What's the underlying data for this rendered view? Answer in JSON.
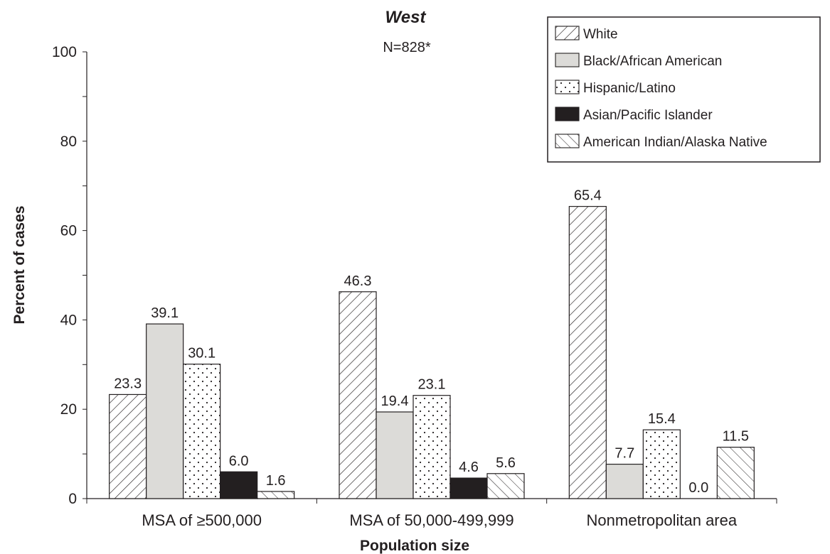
{
  "chart_data": {
    "type": "bar",
    "title": "West",
    "subtitle": "N=828*",
    "xlabel": "Population size",
    "ylabel": "Percent of cases",
    "ylim": [
      0,
      100
    ],
    "yticks": [
      0,
      20,
      40,
      60,
      80,
      100
    ],
    "grid": false,
    "legend_position": "top-right",
    "categories": [
      "MSA of ≥500,000",
      "MSA of 50,000-499,999",
      "Nonmetropolitan area"
    ],
    "series": [
      {
        "name": "White",
        "pattern": "diagonal-back",
        "values": [
          23.3,
          46.3,
          65.4
        ],
        "labels": [
          "23.3",
          "46.3",
          "65.4"
        ]
      },
      {
        "name": "Black/African American",
        "pattern": "solid-light-gray",
        "color": "#dcdbd8",
        "values": [
          39.1,
          19.4,
          7.7
        ],
        "labels": [
          "39.1",
          "19.4",
          "7.7"
        ]
      },
      {
        "name": "Hispanic/Latino",
        "pattern": "dots",
        "values": [
          30.1,
          23.1,
          15.4
        ],
        "labels": [
          "30.1",
          "23.1",
          "15.4"
        ]
      },
      {
        "name": "Asian/Pacific Islander",
        "pattern": "solid-black",
        "color": "#231f20",
        "values": [
          6.0,
          4.6,
          0.0
        ],
        "labels": [
          "6.0",
          "4.6",
          "0.0"
        ]
      },
      {
        "name": "American Indian/Alaska Native",
        "pattern": "diagonal-forward",
        "values": [
          1.6,
          5.6,
          11.5
        ],
        "labels": [
          "1.6",
          "5.6",
          "11.5"
        ]
      }
    ]
  }
}
